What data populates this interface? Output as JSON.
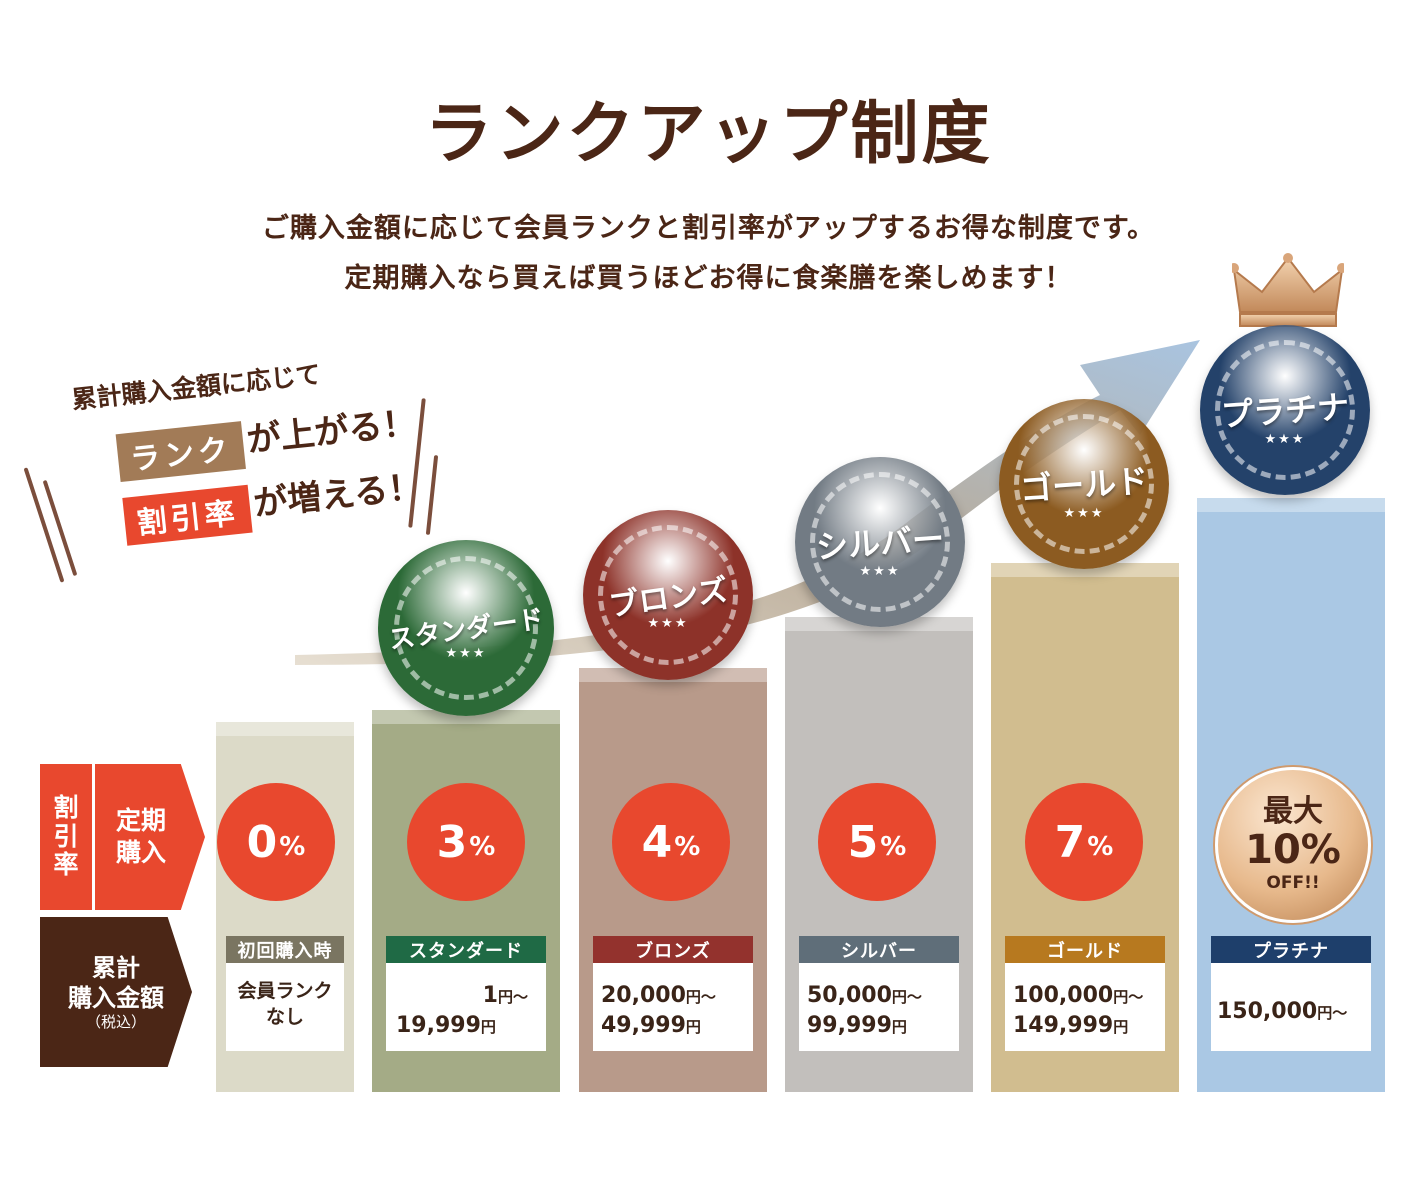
{
  "title": "ランクアップ制度",
  "subtitle_lines": [
    "ご購入金額に応じて会員ランクと割引率がアップするお得な制度です。",
    "定期購入なら買えば買うほどお得に食楽膳を楽しめます！"
  ],
  "callout": {
    "line1": "累計購入金額に応じて",
    "rank_tag": "ランク",
    "rank_after": "が上がる！",
    "discount_tag": "割引率",
    "discount_after": "が増える！"
  },
  "row_headers": {
    "rate_a": "割\n引\n率",
    "rate_b": "定期\n購入",
    "total": "累計\n購入金額",
    "total_note": "（税込）"
  },
  "tiers": [
    {
      "label": "初回購入時",
      "rate": "0",
      "rate_unit": "%",
      "amount_line1": "会員ランク",
      "amount_line2": "なし",
      "column_color": "#dcdac8",
      "label_color": "#7a7561"
    },
    {
      "medal": "スタンダード",
      "label": "スタンダード",
      "rate": "3",
      "rate_unit": "%",
      "amount_line1": "1",
      "amount_line2": "19,999",
      "column_color": "#a4ab86",
      "label_color": "#1f6a45",
      "medal_color": "#2c6a37"
    },
    {
      "medal": "ブロンズ",
      "label": "ブロンズ",
      "rate": "4",
      "rate_unit": "%",
      "amount_line1": "20,000",
      "amount_line2": "49,999",
      "column_color": "#b89a8a",
      "label_color": "#93322d",
      "medal_color": "#8d3229"
    },
    {
      "medal": "シルバー",
      "label": "シルバー",
      "rate": "5",
      "rate_unit": "%",
      "amount_line1": "50,000",
      "amount_line2": "99,999",
      "column_color": "#c2bfbc",
      "label_color": "#5f6e79",
      "medal_color": "#727b84"
    },
    {
      "medal": "ゴールド",
      "label": "ゴールド",
      "rate": "7",
      "rate_unit": "%",
      "amount_line1": "100,000",
      "amount_line2": "149,999",
      "column_color": "#d1bd8f",
      "label_color": "#b7791f",
      "medal_color": "#8c5b21"
    },
    {
      "medal": "プラチナ",
      "label": "プラチナ",
      "rate_line1": "最大",
      "rate": "10",
      "rate_unit": "%",
      "rate_note": "OFF!!",
      "amount_line1": "150,000",
      "column_color": "#aac8e4",
      "label_color": "#1e3f6b",
      "medal_color": "#24426a"
    }
  ],
  "yen": "円",
  "from": "〜",
  "stars": "★★★"
}
